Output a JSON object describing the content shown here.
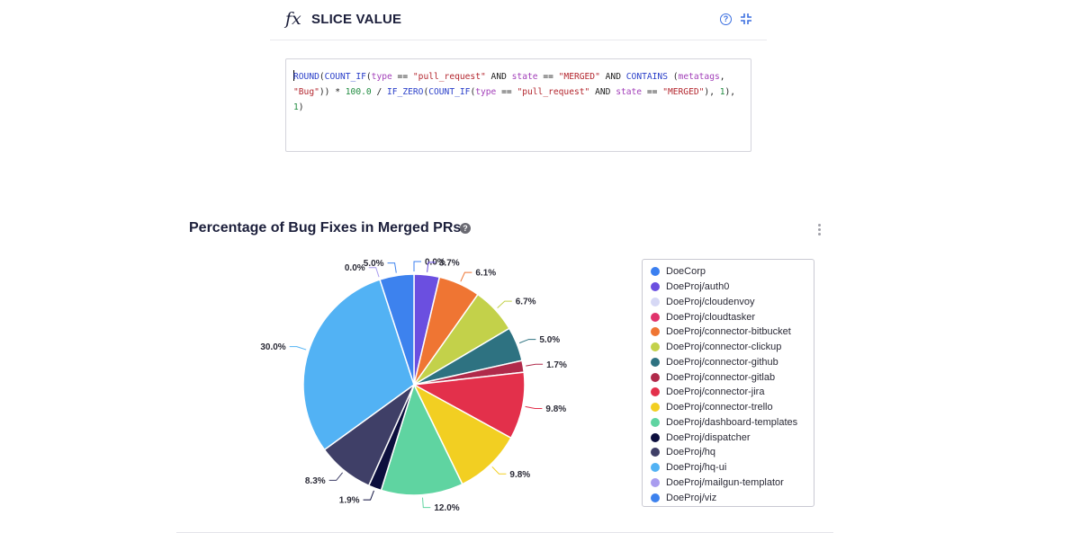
{
  "slice_panel": {
    "fx_symbol": "fx",
    "title": "SLICE VALUE",
    "help_glyph": "?",
    "icons": {
      "help": "help-circle-icon",
      "collapse": "collapse-icon"
    }
  },
  "formula": {
    "tokens": [
      {
        "t": "ROUND",
        "c": "fn"
      },
      {
        "t": "(",
        "c": "kw"
      },
      {
        "t": "COUNT_IF",
        "c": "fn"
      },
      {
        "t": "(",
        "c": "kw"
      },
      {
        "t": "type",
        "c": "id"
      },
      {
        "t": " == ",
        "c": "kw"
      },
      {
        "t": "\"pull_request\"",
        "c": "str"
      },
      {
        "t": " AND ",
        "c": "kw"
      },
      {
        "t": "state",
        "c": "id"
      },
      {
        "t": " == ",
        "c": "kw"
      },
      {
        "t": "\"MERGED\"",
        "c": "str"
      },
      {
        "t": " AND ",
        "c": "kw"
      },
      {
        "t": "CONTAINS",
        "c": "fn"
      },
      {
        "t": " (",
        "c": "kw"
      },
      {
        "t": "metatags",
        "c": "id"
      },
      {
        "t": ", ",
        "c": "kw"
      },
      {
        "t": "\"Bug\"",
        "c": "str"
      },
      {
        "t": ")) * ",
        "c": "kw"
      },
      {
        "t": "100.0",
        "c": "num"
      },
      {
        "t": " / ",
        "c": "kw"
      },
      {
        "t": "IF_ZERO",
        "c": "fn"
      },
      {
        "t": "(",
        "c": "kw"
      },
      {
        "t": "COUNT_IF",
        "c": "fn"
      },
      {
        "t": "(",
        "c": "kw"
      },
      {
        "t": "type",
        "c": "id"
      },
      {
        "t": " == ",
        "c": "kw"
      },
      {
        "t": "\"pull_request\"",
        "c": "str"
      },
      {
        "t": " AND ",
        "c": "kw"
      },
      {
        "t": "state",
        "c": "id"
      },
      {
        "t": " == ",
        "c": "kw"
      },
      {
        "t": "\"MERGED\"",
        "c": "str"
      },
      {
        "t": "), ",
        "c": "kw"
      },
      {
        "t": "1",
        "c": "num"
      },
      {
        "t": "), ",
        "c": "kw"
      },
      {
        "t": "1",
        "c": "num"
      },
      {
        "t": ")",
        "c": "kw"
      }
    ]
  },
  "chart": {
    "title": "Percentage of Bug Fixes in Merged PRs",
    "help_glyph": "?",
    "more_icon": "kebab-menu-icon"
  },
  "chart_data": {
    "type": "pie",
    "title": "Percentage of Bug Fixes in Merged PRs",
    "legend_position": "right",
    "slices": [
      {
        "name": "DoeCorp",
        "value": 0.0,
        "label": "0.0%",
        "color": "#3b7ff0"
      },
      {
        "name": "DoeProj/auth0",
        "value": 3.7,
        "label": "3.7%",
        "color": "#6b4fe0"
      },
      {
        "name": "DoeProj/cloudenvoy",
        "value": 0.0,
        "label": "",
        "color": "#d6d8f5"
      },
      {
        "name": "DoeProj/cloudtasker",
        "value": 0.0,
        "label": "",
        "color": "#e0336b"
      },
      {
        "name": "DoeProj/connector-bitbucket",
        "value": 6.1,
        "label": "6.1%",
        "color": "#ef7533"
      },
      {
        "name": "DoeProj/connector-clickup",
        "value": 6.7,
        "label": "6.7%",
        "color": "#c3d14a"
      },
      {
        "name": "DoeProj/connector-github",
        "value": 5.0,
        "label": "5.0%",
        "color": "#2e7281"
      },
      {
        "name": "DoeProj/connector-gitlab",
        "value": 1.7,
        "label": "1.7%",
        "color": "#b02a4a"
      },
      {
        "name": "DoeProj/connector-jira",
        "value": 9.8,
        "label": "9.8%",
        "color": "#e3304b"
      },
      {
        "name": "DoeProj/connector-trello",
        "value": 9.8,
        "label": "9.8%",
        "color": "#f2cf22"
      },
      {
        "name": "DoeProj/dashboard-templates",
        "value": 12.0,
        "label": "12.0%",
        "color": "#5fd4a1"
      },
      {
        "name": "DoeProj/dispatcher",
        "value": 1.9,
        "label": "1.9%",
        "color": "#0d0f3e"
      },
      {
        "name": "DoeProj/hq",
        "value": 8.3,
        "label": "8.3%",
        "color": "#3f3f67"
      },
      {
        "name": "DoeProj/hq-ui",
        "value": 30.0,
        "label": "30.0%",
        "color": "#52b2f4"
      },
      {
        "name": "DoeProj/mailgun-templator",
        "value": 0.0,
        "label": "0.0%",
        "color": "#a99cef"
      },
      {
        "name": "DoeProj/viz",
        "value": 5.0,
        "label": "5.0%",
        "color": "#3d82ee"
      }
    ]
  }
}
